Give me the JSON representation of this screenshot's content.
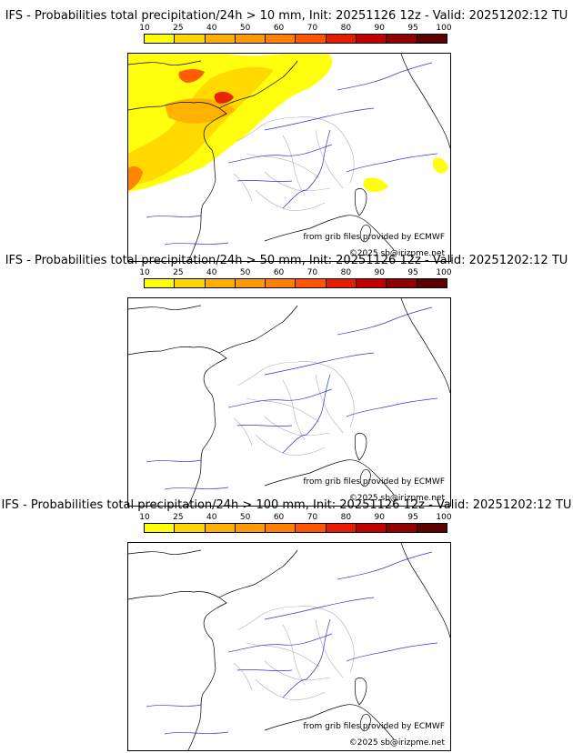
{
  "scale": {
    "labels": [
      "10",
      "25",
      "40",
      "50",
      "60",
      "70",
      "80",
      "90",
      "95",
      "100"
    ],
    "colors": [
      "#ffff00",
      "#ffd700",
      "#ffb000",
      "#ff9a00",
      "#ff7f00",
      "#ff5500",
      "#e81a00",
      "#c00000",
      "#900000",
      "#5c0000"
    ]
  },
  "panels": [
    {
      "title": "IFS - Probabilities total precipitation/24h > 10 mm, Init: 20251126 12z - Valid: 20251202:12 TU",
      "source": "from grib files provided by ECMWF",
      "copyright": "©2025 sb@irizpme.net",
      "precip_level": "high"
    },
    {
      "title": "IFS - Probabilities total precipitation/24h > 50 mm, Init: 20251126 12z - Valid: 20251202:12 TU",
      "source": "from grib files provided by ECMWF",
      "copyright": "©2025 sb@irizpme.net",
      "precip_level": "none"
    },
    {
      "title": "IFS - Probabilities total precipitation/24h > 100 mm, Init: 20251126 12z - Valid: 20251202:12 TU",
      "source": "from grib files provided by ECMWF",
      "copyright": "©2025 sb@irizpme.net",
      "precip_level": "none"
    }
  ]
}
